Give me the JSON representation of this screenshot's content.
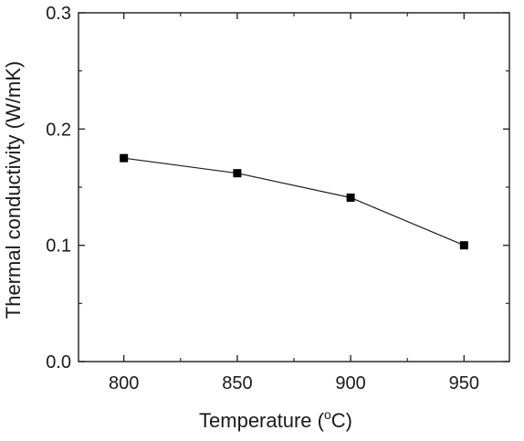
{
  "chart_data": {
    "type": "line",
    "title": "",
    "xlabel": "Temperature (",
    "xlabel_sup": "o",
    "xlabel_tail": "C)",
    "ylabel": "Thermal conductivity  (W/mK)",
    "xlim": [
      780,
      970
    ],
    "ylim": [
      0.0,
      0.3
    ],
    "x_ticks": [
      800,
      850,
      900,
      950
    ],
    "x_tick_labels": [
      "800",
      "850",
      "900",
      "950"
    ],
    "y_ticks": [
      0.0,
      0.1,
      0.2,
      0.3
    ],
    "y_tick_labels": [
      "0.0",
      "0.1",
      "0.2",
      "0.3"
    ],
    "grid": false,
    "legend": "none",
    "marker": "square",
    "line_color": "#1a1a1a",
    "marker_color": "#000000",
    "series": [
      {
        "x": [
          800,
          850,
          900,
          950
        ],
        "y": [
          0.175,
          0.162,
          0.141,
          0.1
        ]
      }
    ]
  }
}
